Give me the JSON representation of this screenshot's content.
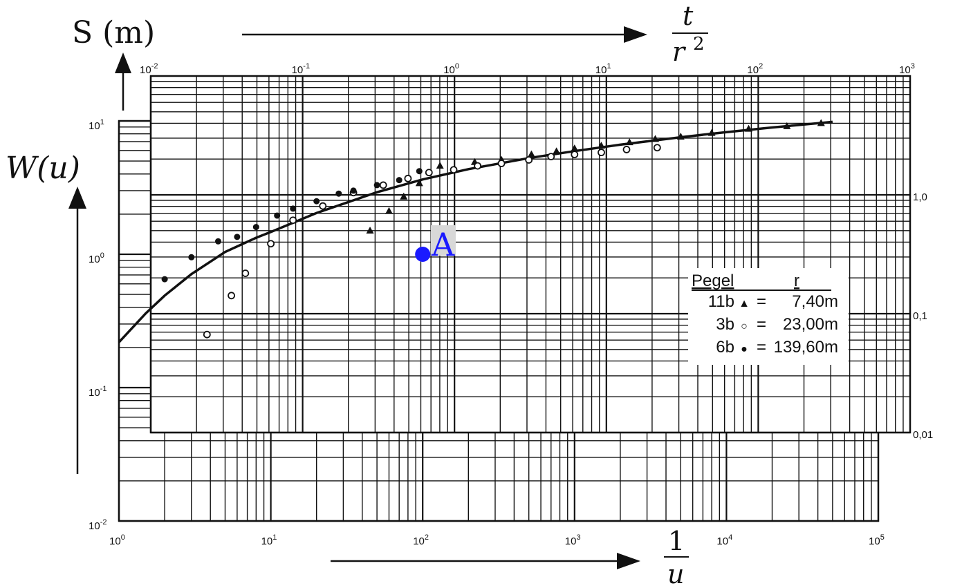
{
  "chart_data": {
    "type": "scatter",
    "description_style": "Theis type-curve matching on double-logarithmic paper",
    "type_curve_axes": {
      "x": {
        "label": "1/u",
        "scale": "log",
        "range": [
          1,
          100000
        ],
        "tick_labels": [
          "10^0",
          "10^1",
          "10^2",
          "10^3",
          "10^4",
          "10^5"
        ]
      },
      "y": {
        "label": "W(u)",
        "scale": "log",
        "range": [
          0.01,
          10
        ],
        "tick_labels": [
          "10^-2",
          "10^-1",
          "10^0",
          "10^1"
        ]
      }
    },
    "data_axes": {
      "x": {
        "label": "t / r^2",
        "scale": "log",
        "range": [
          0.01,
          1000
        ],
        "tick_labels": [
          "10^-2",
          "10^-1",
          "10^0",
          "10^1",
          "10^2",
          "10^3"
        ]
      },
      "y": {
        "label": "S (m)",
        "scale": "log",
        "range": [
          0.01,
          10
        ],
        "tick_labels": [
          "0,01",
          "0,1",
          "1,0"
        ]
      }
    },
    "theis_curve": {
      "name": "W(u)",
      "x": [
        1.0,
        1.5,
        2,
        3,
        5,
        8,
        10,
        20,
        50,
        100,
        200,
        500,
        1000,
        2000,
        5000,
        10000,
        20000,
        50000
      ],
      "y": [
        0.219,
        0.36,
        0.49,
        0.71,
        1.04,
        1.33,
        1.47,
        2.04,
        2.92,
        3.64,
        4.35,
        5.26,
        5.94,
        6.63,
        7.55,
        8.24,
        8.93,
        9.84
      ]
    },
    "series": [
      {
        "name": "11b",
        "marker": "triangle",
        "r": "7,40m",
        "x": [
          45,
          60,
          75,
          95,
          130,
          220,
          330,
          520,
          760,
          1000,
          1500,
          2300,
          3400,
          5000,
          8000,
          14000,
          25000,
          42000
        ],
        "y": [
          1.5,
          2.1,
          2.7,
          3.4,
          4.6,
          4.9,
          5.1,
          5.6,
          5.9,
          6.2,
          6.5,
          6.9,
          7.3,
          7.6,
          8.1,
          8.7,
          9.1,
          9.6
        ]
      },
      {
        "name": "3b",
        "marker": "open-circle",
        "r": "23,00m",
        "x": [
          3.8,
          5.5,
          6.8,
          10,
          14,
          22,
          35,
          55,
          80,
          110,
          160,
          230,
          330,
          500,
          700,
          1000,
          1500,
          2200,
          3500
        ],
        "y": [
          0.25,
          0.49,
          0.72,
          1.2,
          1.8,
          2.3,
          2.9,
          3.3,
          3.7,
          4.1,
          4.3,
          4.6,
          4.8,
          5.1,
          5.4,
          5.6,
          5.8,
          6.1,
          6.3
        ]
      },
      {
        "name": "6b",
        "marker": "filled-circle",
        "r": "139,60m",
        "x": [
          2,
          3,
          4.5,
          6,
          8,
          11,
          14,
          20,
          28,
          35,
          50,
          70,
          95
        ],
        "y": [
          0.65,
          0.95,
          1.25,
          1.35,
          1.6,
          1.95,
          2.2,
          2.5,
          2.85,
          3.0,
          3.3,
          3.6,
          4.2
        ]
      }
    ],
    "match_point": {
      "label": "A",
      "x": 100,
      "y": 1.0,
      "color": "#1a1aff"
    },
    "legend": {
      "title_left": "Pegel",
      "title_right": "r",
      "rows": [
        {
          "well": "11b",
          "symbol": "▲",
          "eq": "=",
          "r": "7,40m"
        },
        {
          "well": "3b",
          "symbol": "○",
          "eq": "=",
          "r": "23,00m"
        },
        {
          "well": "6b",
          "symbol": "●",
          "eq": "=",
          "r": "139,60m"
        }
      ],
      "placement": "right-middle"
    },
    "grid": true
  },
  "labels": {
    "s_axis": "S (m)",
    "w_axis": "W(u)",
    "t_frac_num": "t",
    "t_frac_den": "r",
    "t_frac_exp": "2",
    "u_frac_num": "1",
    "u_frac_den": "u",
    "point_label": "A"
  },
  "colors": {
    "ink": "#111111",
    "match_point": "#1a1aff",
    "label_box": "#d8d8d8"
  }
}
